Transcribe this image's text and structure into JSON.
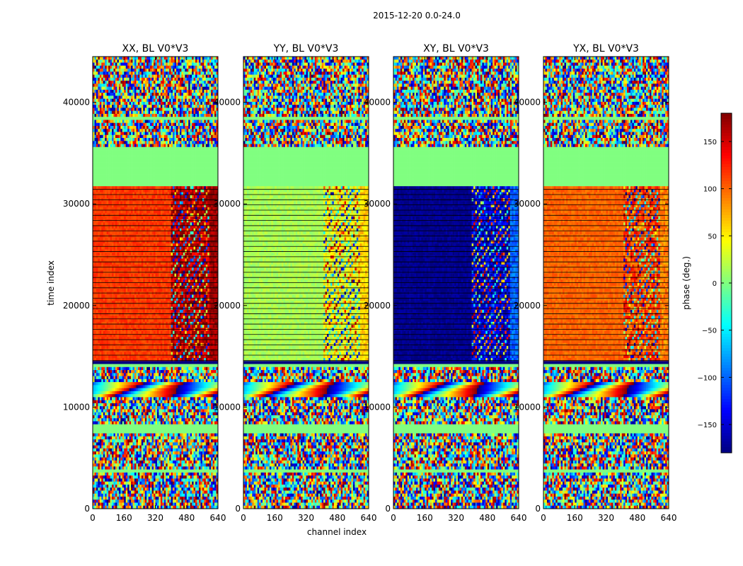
{
  "figure": {
    "suptitle": "2015-12-20 0.0-24.0"
  },
  "chart_data": {
    "type": "heatmap",
    "title": "2015-12-20 0.0-24.0",
    "xlabel": "channel index",
    "ylabel": "time index",
    "xlim": [
      0,
      640
    ],
    "ylim": [
      0,
      44500
    ],
    "x_ticks": [
      0,
      160,
      320,
      480,
      640
    ],
    "x_tick_labels": [
      "0",
      "160",
      "320",
      "480",
      "640"
    ],
    "y_ticks": [
      0,
      10000,
      20000,
      30000,
      40000
    ],
    "y_tick_labels": [
      "0",
      "10000",
      "20000",
      "30000",
      "40000"
    ],
    "colormap": "jet",
    "colorbar": {
      "label": "phase (deg.)",
      "range": [
        -180,
        180
      ],
      "ticks": [
        -150,
        -100,
        -50,
        0,
        50,
        100,
        150
      ],
      "tick_labels": [
        "−150",
        "−100",
        "−50",
        "0",
        "50",
        "100",
        "150"
      ]
    },
    "panels": [
      {
        "title": "XX, BL V0*V3",
        "flagged_value": 0,
        "high_value": 115,
        "right_value": 160,
        "edge_value": 170,
        "smooth_from_channel": 400
      },
      {
        "title": "YY, BL V0*V3",
        "flagged_value": 0,
        "high_value": 15,
        "right_value": 40,
        "edge_value": 60,
        "smooth_from_channel": 410
      },
      {
        "title": "XY, BL V0*V3",
        "flagged_value": 0,
        "high_value": -175,
        "right_value": -150,
        "edge_value": -100,
        "smooth_from_channel": 400
      },
      {
        "title": "YX, BL V0*V3",
        "flagged_value": 0,
        "high_value": 100,
        "right_value": 110,
        "edge_value": 90,
        "smooth_from_channel": 410
      }
    ]
  }
}
